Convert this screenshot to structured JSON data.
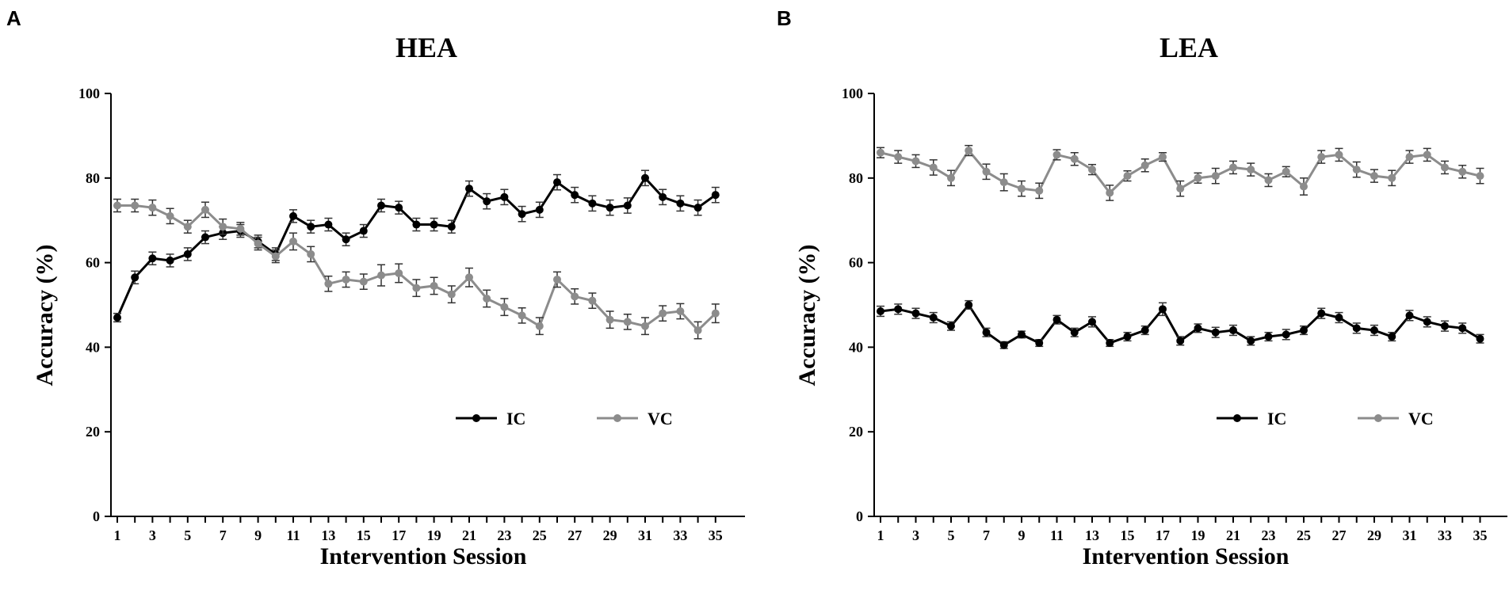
{
  "chart_data": [
    {
      "type": "line",
      "panel": "A",
      "title": "HEA",
      "xlabel": "Intervention Session",
      "ylabel": "Accuracy (%)",
      "ylim": [
        0,
        100
      ],
      "yticks": [
        0,
        20,
        40,
        60,
        80,
        100
      ],
      "xticks": [
        1,
        3,
        5,
        7,
        9,
        11,
        13,
        15,
        17,
        19,
        21,
        23,
        25,
        27,
        29,
        31,
        33,
        35
      ],
      "x": [
        1,
        2,
        3,
        4,
        5,
        6,
        7,
        8,
        9,
        10,
        11,
        12,
        13,
        14,
        15,
        16,
        17,
        18,
        19,
        20,
        21,
        22,
        23,
        24,
        25,
        26,
        27,
        28,
        29,
        30,
        31,
        32,
        33,
        34,
        35
      ],
      "legend_position": "bottom-right",
      "series": [
        {
          "name": "IC",
          "color": "#000000",
          "values": [
            47,
            56.5,
            61,
            60.5,
            62,
            66,
            67,
            67.5,
            65,
            62,
            71,
            68.5,
            69,
            65.5,
            67.5,
            73.5,
            73,
            69,
            69,
            68.5,
            77.5,
            74.5,
            75.5,
            71.5,
            72.5,
            79,
            76,
            74,
            73,
            73.5,
            80,
            75.5,
            74,
            73,
            76
          ],
          "errors": [
            1,
            1.5,
            1.5,
            1.5,
            1.5,
            1.5,
            1.5,
            1.5,
            1.5,
            1.5,
            1.5,
            1.5,
            1.5,
            1.5,
            1.5,
            1.5,
            1.5,
            1.5,
            1.5,
            1.5,
            1.8,
            1.8,
            1.8,
            1.8,
            1.8,
            1.8,
            1.8,
            1.8,
            1.8,
            1.8,
            1.8,
            1.8,
            1.8,
            1.8,
            1.8
          ]
        },
        {
          "name": "VC",
          "color": "#8c8c8c",
          "values": [
            73.5,
            73.5,
            73,
            71,
            68.5,
            72.5,
            68.5,
            68,
            64.5,
            61.5,
            65,
            62,
            55,
            56,
            55.5,
            57,
            57.5,
            54,
            54.5,
            52.5,
            56.5,
            51.5,
            49.5,
            47.5,
            45,
            56,
            52,
            51,
            46.5,
            46,
            45,
            48,
            48.5,
            44,
            48
          ],
          "errors": [
            1.5,
            1.5,
            1.8,
            1.8,
            1.5,
            1.8,
            1.8,
            1.5,
            1.5,
            1.5,
            2,
            1.8,
            1.8,
            1.8,
            1.8,
            2.5,
            2.2,
            2,
            2,
            2,
            2.2,
            2,
            2,
            1.8,
            2,
            1.8,
            1.8,
            1.8,
            2,
            1.8,
            2,
            1.8,
            1.8,
            2,
            2.2
          ]
        }
      ]
    },
    {
      "type": "line",
      "panel": "B",
      "title": "LEA",
      "xlabel": "Intervention Session",
      "ylabel": "Accuracy (%)",
      "ylim": [
        0,
        100
      ],
      "yticks": [
        0,
        20,
        40,
        60,
        80,
        100
      ],
      "xticks": [
        1,
        3,
        5,
        7,
        9,
        11,
        13,
        15,
        17,
        19,
        21,
        23,
        25,
        27,
        29,
        31,
        33,
        35
      ],
      "x": [
        1,
        2,
        3,
        4,
        5,
        6,
        7,
        8,
        9,
        10,
        11,
        12,
        13,
        14,
        15,
        16,
        17,
        18,
        19,
        20,
        21,
        22,
        23,
        24,
        25,
        26,
        27,
        28,
        29,
        30,
        31,
        32,
        33,
        34,
        35
      ],
      "legend_position": "bottom-right",
      "series": [
        {
          "name": "IC",
          "color": "#000000",
          "values": [
            48.5,
            49,
            48,
            47,
            45,
            50,
            43.5,
            40.5,
            43,
            41,
            46.5,
            43.5,
            46,
            41,
            42.5,
            44,
            49,
            41.5,
            44.5,
            43.5,
            44,
            41.5,
            42.5,
            43,
            44,
            48,
            47,
            44.5,
            44,
            42.5,
            47.5,
            46,
            45,
            44.5,
            42
          ],
          "errors": [
            1.2,
            1.2,
            1.2,
            1.2,
            1,
            1,
            1,
            0.8,
            0.8,
            0.8,
            1,
            1,
            1.2,
            0.8,
            1,
            1,
            1.5,
            1,
            1,
            1.2,
            1.2,
            1,
            1,
            1.2,
            1,
            1.2,
            1.2,
            1.2,
            1.2,
            1,
            1.2,
            1.2,
            1.2,
            1.2,
            1
          ]
        },
        {
          "name": "VC",
          "color": "#8c8c8c",
          "values": [
            86,
            85,
            84,
            82.5,
            80,
            86.5,
            81.5,
            79,
            77.5,
            77,
            85.5,
            84.5,
            82,
            76.5,
            80.5,
            83,
            85,
            77.5,
            80,
            80.5,
            82.5,
            82,
            79.5,
            81.5,
            78,
            85,
            85.5,
            82,
            80.5,
            80,
            85,
            85.5,
            82.5,
            81.5,
            80.5
          ],
          "errors": [
            1.2,
            1.5,
            1.5,
            1.8,
            1.8,
            1.2,
            1.8,
            2,
            1.8,
            1.8,
            1.2,
            1.5,
            1.2,
            1.8,
            1.2,
            1.5,
            1,
            1.8,
            1.2,
            1.8,
            1.5,
            1.5,
            1.5,
            1.2,
            2,
            1.5,
            1.5,
            1.8,
            1.5,
            1.8,
            1.5,
            1.5,
            1.5,
            1.5,
            1.8
          ]
        }
      ]
    }
  ]
}
